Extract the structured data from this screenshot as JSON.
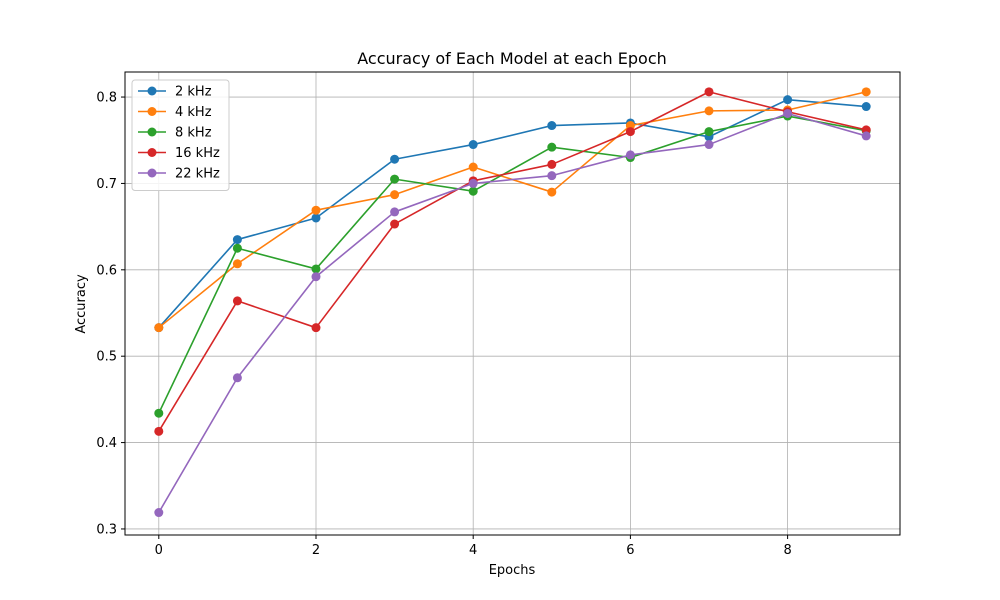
{
  "chart_data": {
    "type": "line",
    "title": "Accuracy of Each Model at each Epoch",
    "xlabel": "Epochs",
    "ylabel": "Accuracy",
    "xlim": [
      -0.43,
      9.43
    ],
    "ylim": [
      0.293,
      0.829
    ],
    "xticks": [
      0,
      2,
      4,
      6,
      8
    ],
    "yticks": [
      0.3,
      0.4,
      0.5,
      0.6,
      0.7,
      0.8
    ],
    "grid": true,
    "legend_position": "top-left",
    "x": [
      0,
      1,
      2,
      3,
      4,
      5,
      6,
      7,
      8,
      9
    ],
    "series": [
      {
        "name": "2 kHz",
        "color": "#1f77b4",
        "values": [
          0.533,
          0.635,
          0.66,
          0.728,
          0.745,
          0.767,
          0.77,
          0.754,
          0.797,
          0.789
        ]
      },
      {
        "name": "4 kHz",
        "color": "#ff7f0e",
        "values": [
          0.533,
          0.607,
          0.669,
          0.687,
          0.719,
          0.69,
          0.767,
          0.784,
          0.785,
          0.806
        ]
      },
      {
        "name": "8 kHz",
        "color": "#2ca02c",
        "values": [
          0.434,
          0.625,
          0.601,
          0.705,
          0.691,
          0.742,
          0.73,
          0.76,
          0.778,
          0.761
        ]
      },
      {
        "name": "16 kHz",
        "color": "#d62728",
        "values": [
          0.413,
          0.564,
          0.533,
          0.653,
          0.703,
          0.722,
          0.76,
          0.806,
          0.783,
          0.762
        ]
      },
      {
        "name": "22 kHz",
        "color": "#9467bd",
        "values": [
          0.319,
          0.475,
          0.592,
          0.667,
          0.7,
          0.709,
          0.733,
          0.745,
          0.781,
          0.755
        ]
      }
    ]
  }
}
